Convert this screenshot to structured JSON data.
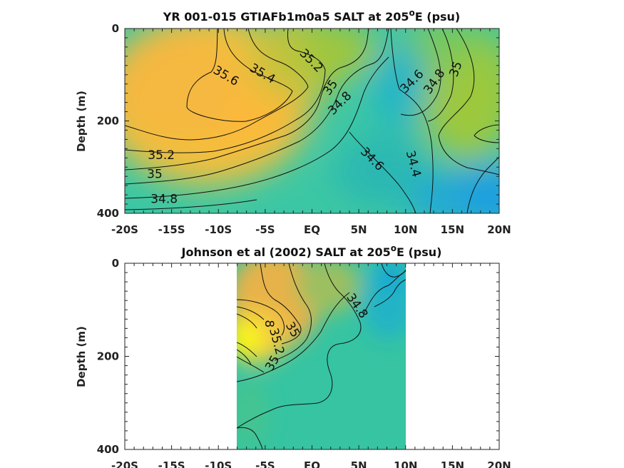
{
  "chart_data": [
    {
      "type": "heatmap",
      "title": "YR 001-015 GTIAFb1m0a5 SALT at 205",
      "title_sup": "o",
      "title_tail": "E (psu)",
      "ylabel": "Depth (m)",
      "xlim": [
        -20,
        20
      ],
      "ylim": [
        0,
        400
      ],
      "y_reversed": true,
      "x_ticks": [
        -20,
        -15,
        -10,
        -5,
        0,
        5,
        10,
        15,
        20
      ],
      "x_tick_labels": [
        "-20S",
        "-15S",
        "-10S",
        "-5S",
        "EQ",
        "5N",
        "10N",
        "15N",
        "20N"
      ],
      "y_ticks": [
        0,
        200,
        400
      ],
      "y_tick_labels": [
        "0",
        "200",
        "400"
      ],
      "data_extent_lat": [
        -20,
        20
      ],
      "contour_levels": [
        34.4,
        34.6,
        34.8,
        35,
        35.2,
        35.4,
        35.6
      ],
      "contour_labels": [
        {
          "text": "35.6",
          "lat": -9.2,
          "depth": 103,
          "angle": 30
        },
        {
          "text": "35.4",
          "lat": -5.3,
          "depth": 98,
          "angle": 30
        },
        {
          "text": "35.2",
          "lat": -0.1,
          "depth": 70,
          "angle": 45
        },
        {
          "text": "35",
          "lat": 2.0,
          "depth": 128,
          "angle": -55
        },
        {
          "text": "34.8",
          "lat": 3.0,
          "depth": 162,
          "angle": -45
        },
        {
          "text": "34.6",
          "lat": 10.7,
          "depth": 115,
          "angle": -45
        },
        {
          "text": "34.8",
          "lat": 13.1,
          "depth": 115,
          "angle": -55
        },
        {
          "text": "35",
          "lat": 15.4,
          "depth": 88,
          "angle": -70
        },
        {
          "text": "35.2",
          "lat": -16.1,
          "depth": 275,
          "angle": 0
        },
        {
          "text": "35",
          "lat": -16.8,
          "depth": 316,
          "angle": 0
        },
        {
          "text": "34.8",
          "lat": -15.8,
          "depth": 370,
          "angle": 0
        },
        {
          "text": "34.6",
          "lat": 6.4,
          "depth": 283,
          "angle": 45
        },
        {
          "text": "34.4",
          "lat": 10.8,
          "depth": 293,
          "angle": 75
        }
      ]
    },
    {
      "type": "heatmap",
      "title": "Johnson et al (2002) SALT at 205",
      "title_sup": "o",
      "title_tail": "E (psu)",
      "ylabel": "Depth (m)",
      "xlim": [
        -20,
        20
      ],
      "ylim": [
        0,
        400
      ],
      "y_reversed": true,
      "x_ticks": [
        -20,
        -15,
        -10,
        -5,
        0,
        5,
        10,
        15,
        20
      ],
      "x_tick_labels": [
        "-20S",
        "-15S",
        "-10S",
        "-5S",
        "EQ",
        "5N",
        "10N",
        "15N",
        "20N"
      ],
      "y_ticks": [
        0,
        200,
        400
      ],
      "y_tick_labels": [
        "0",
        "200",
        "400"
      ],
      "data_extent_lat": [
        -8,
        10
      ],
      "contour_levels": [
        34.8,
        35,
        35.2,
        35.4,
        35.6,
        35.8
      ],
      "contour_labels": [
        {
          "text": "34.8",
          "lat": 4.8,
          "depth": 92,
          "angle": 55
        },
        {
          "text": "35",
          "lat": -2.1,
          "depth": 143,
          "angle": 60
        },
        {
          "text": "35",
          "lat": -4.2,
          "depth": 215,
          "angle": -60
        },
        {
          "text": "8",
          "lat": -4.6,
          "depth": 130,
          "angle": 90
        },
        {
          "text": "35.2",
          "lat": -3.8,
          "depth": 168,
          "angle": 75
        }
      ]
    }
  ]
}
